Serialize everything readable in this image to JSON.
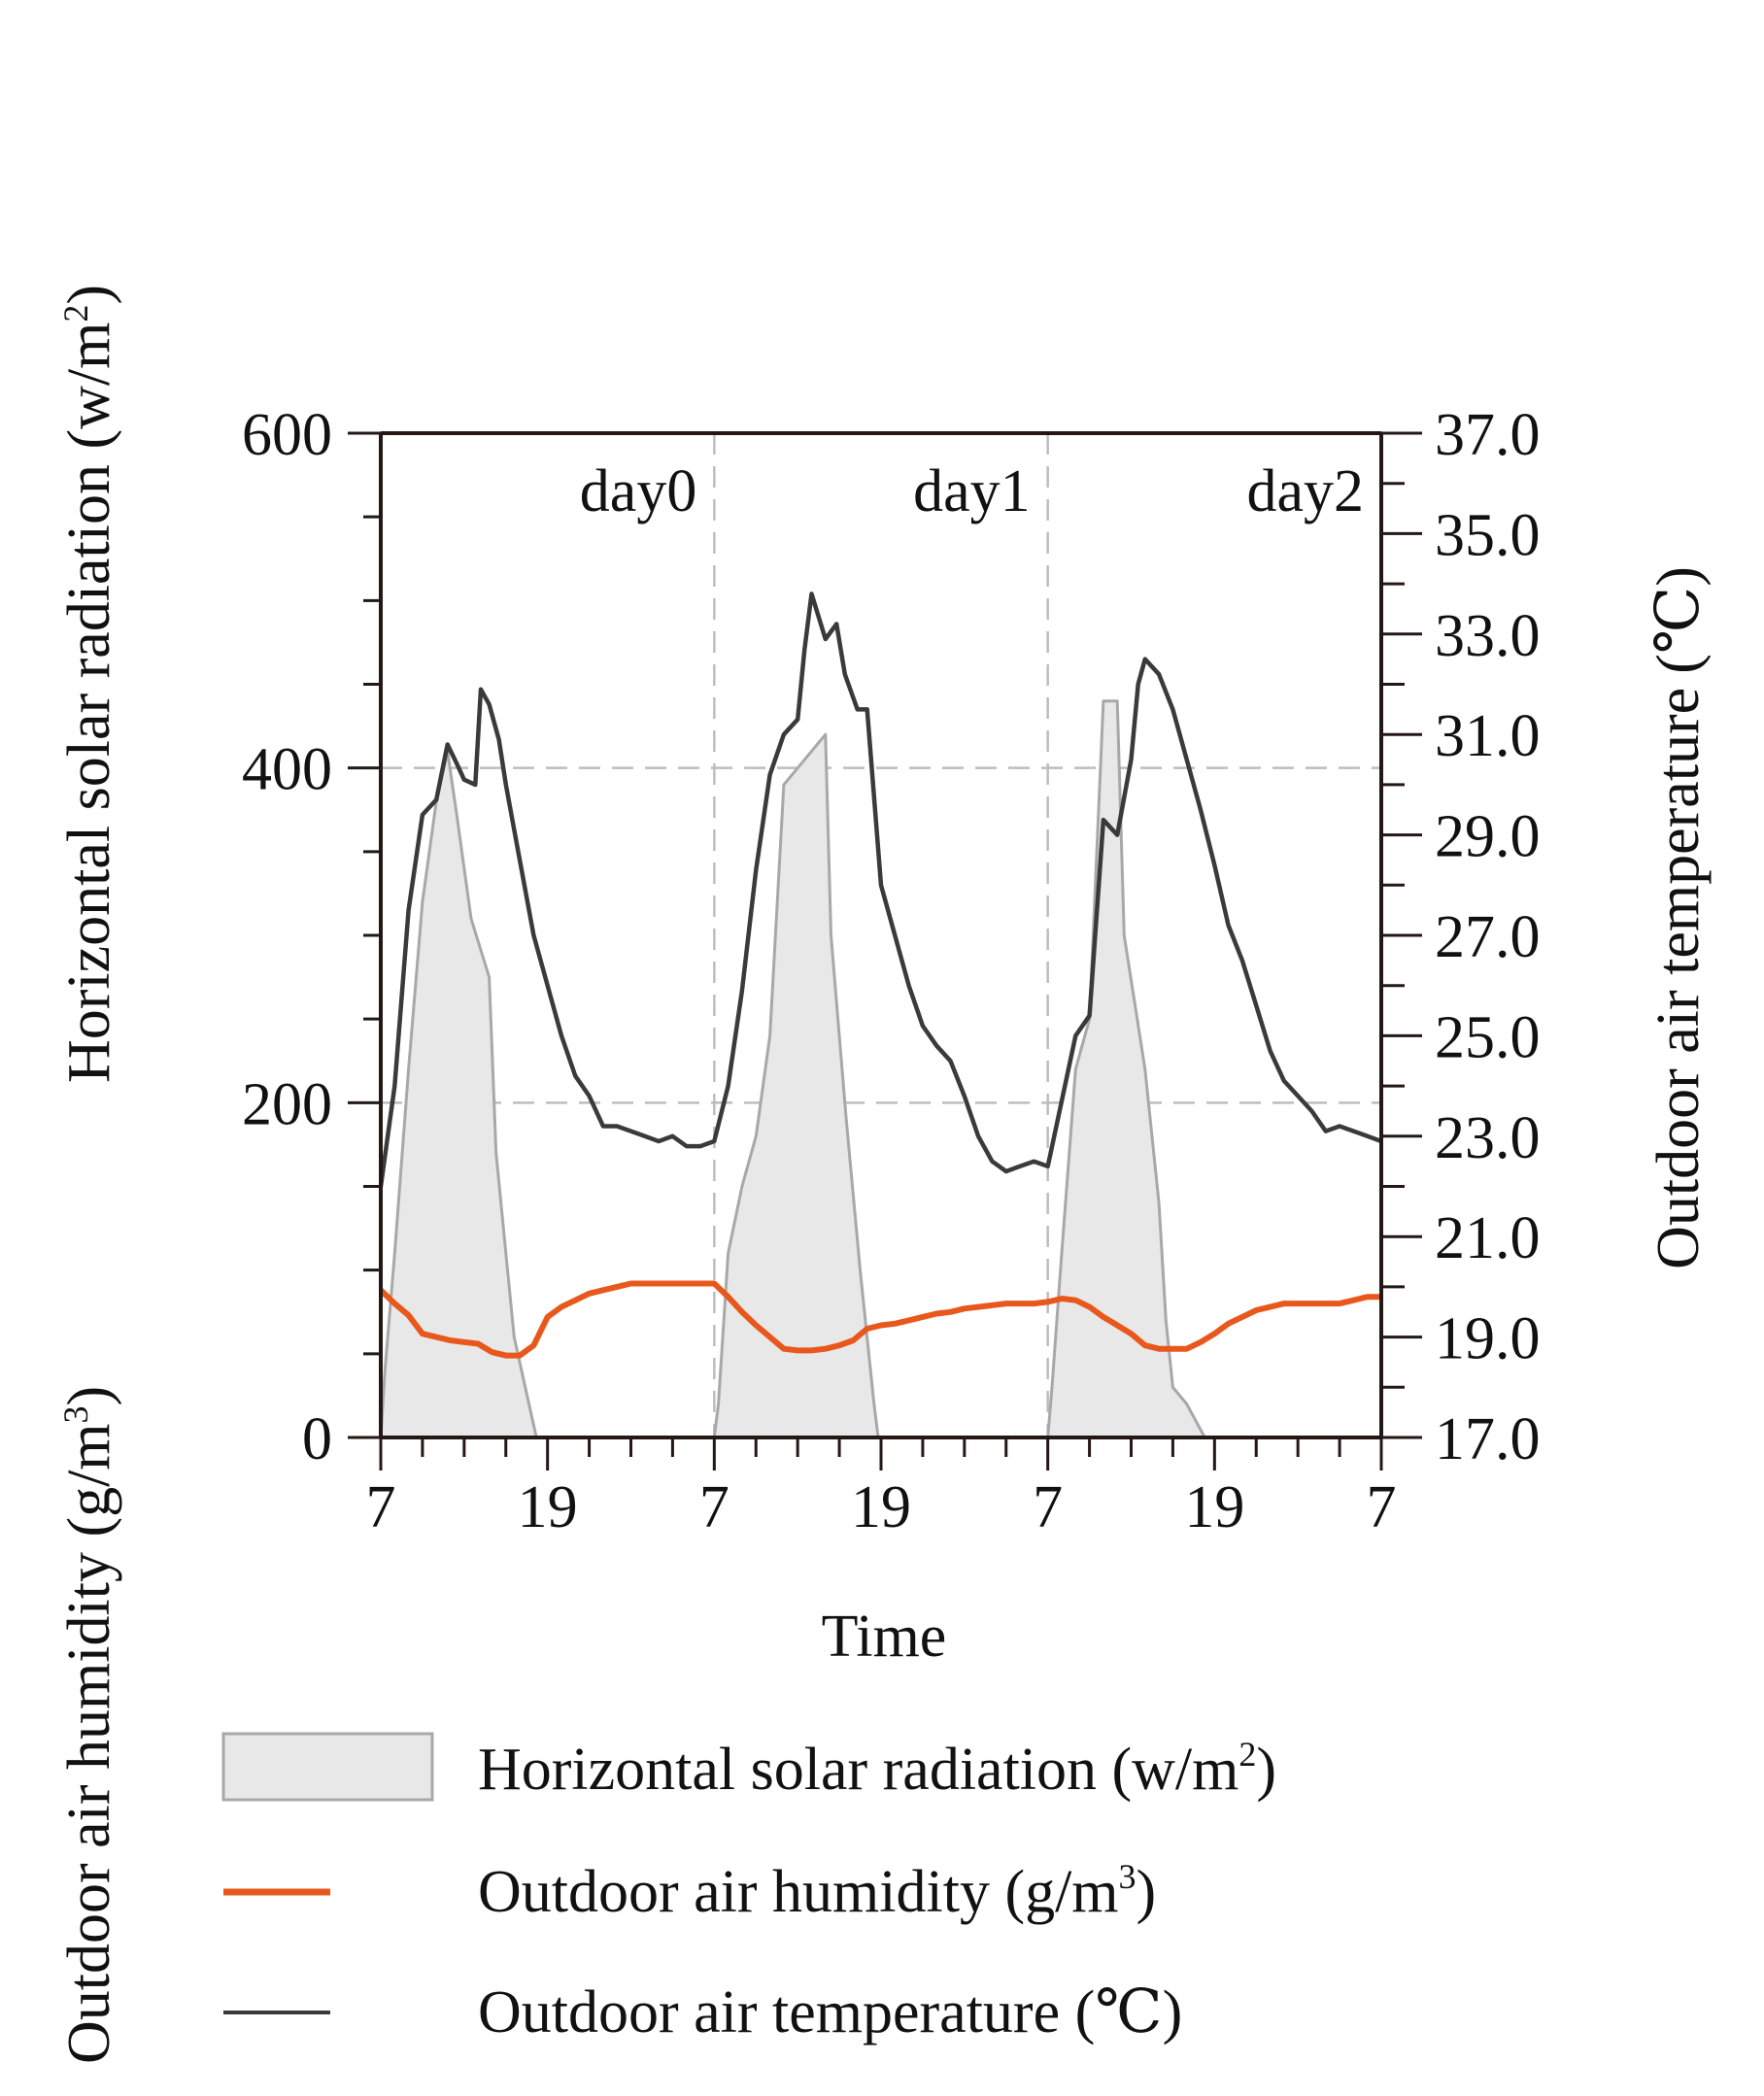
{
  "chart_data": {
    "type": "area+line",
    "x_axis": {
      "title": "Time",
      "range_hours": [
        0,
        72
      ],
      "tick_labels": [
        {
          "hour": 0,
          "label": "7"
        },
        {
          "hour": 12,
          "label": "19"
        },
        {
          "hour": 24,
          "label": "7"
        },
        {
          "hour": 36,
          "label": "19"
        },
        {
          "hour": 48,
          "label": "7"
        },
        {
          "hour": 60,
          "label": "19"
        },
        {
          "hour": 72,
          "label": "7"
        }
      ]
    },
    "left_axis": {
      "title_solar": "Horizontal solar radiation (w/m",
      "title_solar_sup": "2",
      "title_solar_close": ")",
      "title_humidity": "Outdoor air humidity (g/m",
      "title_humidity_sup": "3",
      "title_humidity_close": ")",
      "ylim": [
        0,
        600
      ],
      "ticks": [
        0,
        200,
        400,
        600
      ]
    },
    "right_axis": {
      "title": "Outdoor air temperature",
      "unit": "(℃)",
      "ylim": [
        17.0,
        37.0
      ],
      "ticks": [
        "17.0",
        "19.0",
        "21.0",
        "23.0",
        "25.0",
        "27.0",
        "29.0",
        "31.0",
        "33.0",
        "35.0",
        "37.0"
      ]
    },
    "day_labels": [
      {
        "end_hour": 24,
        "label": "day0"
      },
      {
        "end_hour": 48,
        "label": "day1"
      },
      {
        "end_hour": 72,
        "label": "day2"
      }
    ],
    "grid": {
      "horizontal_dashed_at": [
        200,
        400
      ],
      "vertical_dashed_at_hours": [
        24,
        48
      ]
    },
    "series": [
      {
        "name": "Horizontal solar radiation (w/m²)",
        "axis": "left",
        "style": "area",
        "color": "#e8e8e8",
        "stroke": "#a8a8a8",
        "points": [
          [
            0,
            0
          ],
          [
            0.3,
            40
          ],
          [
            1,
            110
          ],
          [
            2,
            220
          ],
          [
            3,
            320
          ],
          [
            4,
            380
          ],
          [
            4.8,
            410
          ],
          [
            5.5,
            370
          ],
          [
            6.5,
            310
          ],
          [
            7.8,
            275
          ],
          [
            8.3,
            170
          ],
          [
            9,
            110
          ],
          [
            9.6,
            60
          ],
          [
            11.2,
            0
          ],
          [
            24,
            0
          ],
          [
            24.3,
            20
          ],
          [
            25,
            110
          ],
          [
            26,
            150
          ],
          [
            27,
            180
          ],
          [
            28,
            240
          ],
          [
            29,
            390
          ],
          [
            30,
            400
          ],
          [
            31,
            410
          ],
          [
            32,
            420
          ],
          [
            32.4,
            300
          ],
          [
            33.5,
            190
          ],
          [
            34.5,
            100
          ],
          [
            35.5,
            20
          ],
          [
            35.8,
            0
          ],
          [
            48,
            0
          ],
          [
            48.3,
            30
          ],
          [
            49,
            110
          ],
          [
            50,
            220
          ],
          [
            51,
            250
          ],
          [
            52,
            440
          ],
          [
            53,
            440
          ],
          [
            53.5,
            300
          ],
          [
            55,
            220
          ],
          [
            56,
            140
          ],
          [
            56.5,
            70
          ],
          [
            57,
            30
          ],
          [
            58,
            20
          ],
          [
            59.3,
            0
          ],
          [
            72,
            0
          ]
        ]
      },
      {
        "name": "Outdoor air humidity (g/m³)",
        "axis": "left",
        "style": "line",
        "color": "#e8581c",
        "points": [
          [
            0,
            88
          ],
          [
            1,
            80
          ],
          [
            2,
            73
          ],
          [
            3,
            62
          ],
          [
            4,
            60
          ],
          [
            5,
            58
          ],
          [
            6,
            57
          ],
          [
            7,
            56
          ],
          [
            8,
            51
          ],
          [
            9,
            49
          ],
          [
            10,
            49
          ],
          [
            11,
            55
          ],
          [
            12,
            72
          ],
          [
            13,
            78
          ],
          [
            14,
            82
          ],
          [
            15,
            86
          ],
          [
            16,
            88
          ],
          [
            17,
            90
          ],
          [
            18,
            92
          ],
          [
            19,
            92
          ],
          [
            20,
            92
          ],
          [
            21,
            92
          ],
          [
            22,
            92
          ],
          [
            23,
            92
          ],
          [
            24,
            92
          ],
          [
            25,
            84
          ],
          [
            26,
            75
          ],
          [
            27,
            67
          ],
          [
            28,
            60
          ],
          [
            29,
            53
          ],
          [
            30,
            52
          ],
          [
            31,
            52
          ],
          [
            32,
            53
          ],
          [
            33,
            55
          ],
          [
            34,
            58
          ],
          [
            35,
            65
          ],
          [
            36,
            67
          ],
          [
            37,
            68
          ],
          [
            38,
            70
          ],
          [
            39,
            72
          ],
          [
            40,
            74
          ],
          [
            41,
            75
          ],
          [
            42,
            77
          ],
          [
            43,
            78
          ],
          [
            44,
            79
          ],
          [
            45,
            80
          ],
          [
            46,
            80
          ],
          [
            47,
            80
          ],
          [
            48,
            81
          ],
          [
            49,
            83
          ],
          [
            50,
            82
          ],
          [
            51,
            78
          ],
          [
            52,
            72
          ],
          [
            53,
            67
          ],
          [
            54,
            62
          ],
          [
            55,
            55
          ],
          [
            56,
            53
          ],
          [
            57,
            53
          ],
          [
            58,
            53
          ],
          [
            59,
            57
          ],
          [
            60,
            62
          ],
          [
            61,
            68
          ],
          [
            62,
            72
          ],
          [
            63,
            76
          ],
          [
            64,
            78
          ],
          [
            65,
            80
          ],
          [
            66,
            80
          ],
          [
            67,
            80
          ],
          [
            68,
            80
          ],
          [
            69,
            80
          ],
          [
            70,
            82
          ],
          [
            71,
            84
          ],
          [
            72,
            84
          ]
        ]
      },
      {
        "name": "Outdoor air temperature (℃)",
        "axis": "right",
        "style": "line",
        "color": "#3a3a3a",
        "points": [
          [
            0,
            22.0
          ],
          [
            1,
            24.0
          ],
          [
            2,
            27.5
          ],
          [
            3,
            29.4
          ],
          [
            4,
            29.7
          ],
          [
            4.8,
            30.8
          ],
          [
            5.5,
            30.4
          ],
          [
            6,
            30.1
          ],
          [
            6.8,
            30.0
          ],
          [
            7.2,
            31.9
          ],
          [
            7.8,
            31.6
          ],
          [
            8.5,
            30.9
          ],
          [
            9,
            30.0
          ],
          [
            9.8,
            28.8
          ],
          [
            11,
            27.0
          ],
          [
            12,
            26.0
          ],
          [
            13,
            25.0
          ],
          [
            14,
            24.2
          ],
          [
            15,
            23.8
          ],
          [
            16,
            23.2
          ],
          [
            17,
            23.2
          ],
          [
            18,
            23.1
          ],
          [
            19,
            23.0
          ],
          [
            20,
            22.9
          ],
          [
            21,
            23.0
          ],
          [
            22,
            22.8
          ],
          [
            23,
            22.8
          ],
          [
            24,
            22.9
          ],
          [
            25,
            24.0
          ],
          [
            26,
            25.9
          ],
          [
            27,
            28.3
          ],
          [
            28,
            30.2
          ],
          [
            29,
            31.0
          ],
          [
            30,
            31.3
          ],
          [
            30.5,
            32.7
          ],
          [
            31,
            33.8
          ],
          [
            32,
            32.9
          ],
          [
            32.8,
            33.2
          ],
          [
            33.4,
            32.2
          ],
          [
            34.3,
            31.5
          ],
          [
            35,
            31.5
          ],
          [
            36,
            28.0
          ],
          [
            37,
            27.0
          ],
          [
            38,
            26.0
          ],
          [
            39,
            25.2
          ],
          [
            40,
            24.8
          ],
          [
            41,
            24.5
          ],
          [
            42,
            23.8
          ],
          [
            43,
            23.0
          ],
          [
            44,
            22.5
          ],
          [
            45,
            22.3
          ],
          [
            46,
            22.4
          ],
          [
            47,
            22.5
          ],
          [
            48,
            22.4
          ],
          [
            49,
            23.7
          ],
          [
            50,
            25.0
          ],
          [
            51,
            25.4
          ],
          [
            52,
            29.3
          ],
          [
            53,
            29.0
          ],
          [
            54,
            30.5
          ],
          [
            54.5,
            32.0
          ],
          [
            55,
            32.5
          ],
          [
            56,
            32.2
          ],
          [
            57,
            31.5
          ],
          [
            58,
            30.5
          ],
          [
            59,
            29.5
          ],
          [
            60,
            28.4
          ],
          [
            61,
            27.2
          ],
          [
            62,
            26.5
          ],
          [
            63,
            25.6
          ],
          [
            64,
            24.7
          ],
          [
            65,
            24.1
          ],
          [
            66,
            23.8
          ],
          [
            67,
            23.5
          ],
          [
            68,
            23.1
          ],
          [
            69,
            23.2
          ],
          [
            70,
            23.1
          ],
          [
            71,
            23.0
          ],
          [
            72,
            22.9
          ]
        ]
      }
    ]
  },
  "legend": {
    "items": [
      {
        "key": "solar",
        "label": "Horizontal solar radiation (w/m",
        "sup": "2",
        "close": ")"
      },
      {
        "key": "humidity",
        "label": "Outdoor air humidity (g/m",
        "sup": "3",
        "close": ")"
      },
      {
        "key": "temperature",
        "label": "Outdoor air temperature (",
        "sup": "",
        "close": "℃)"
      }
    ],
    "placement": "bottom"
  },
  "colors": {
    "solar_fill": "#e8e8e8",
    "solar_stroke": "#a8a8a8",
    "humidity": "#e8581c",
    "temperature": "#3a3a3a",
    "axis": "#231815",
    "grid": "#bdbdbd"
  }
}
